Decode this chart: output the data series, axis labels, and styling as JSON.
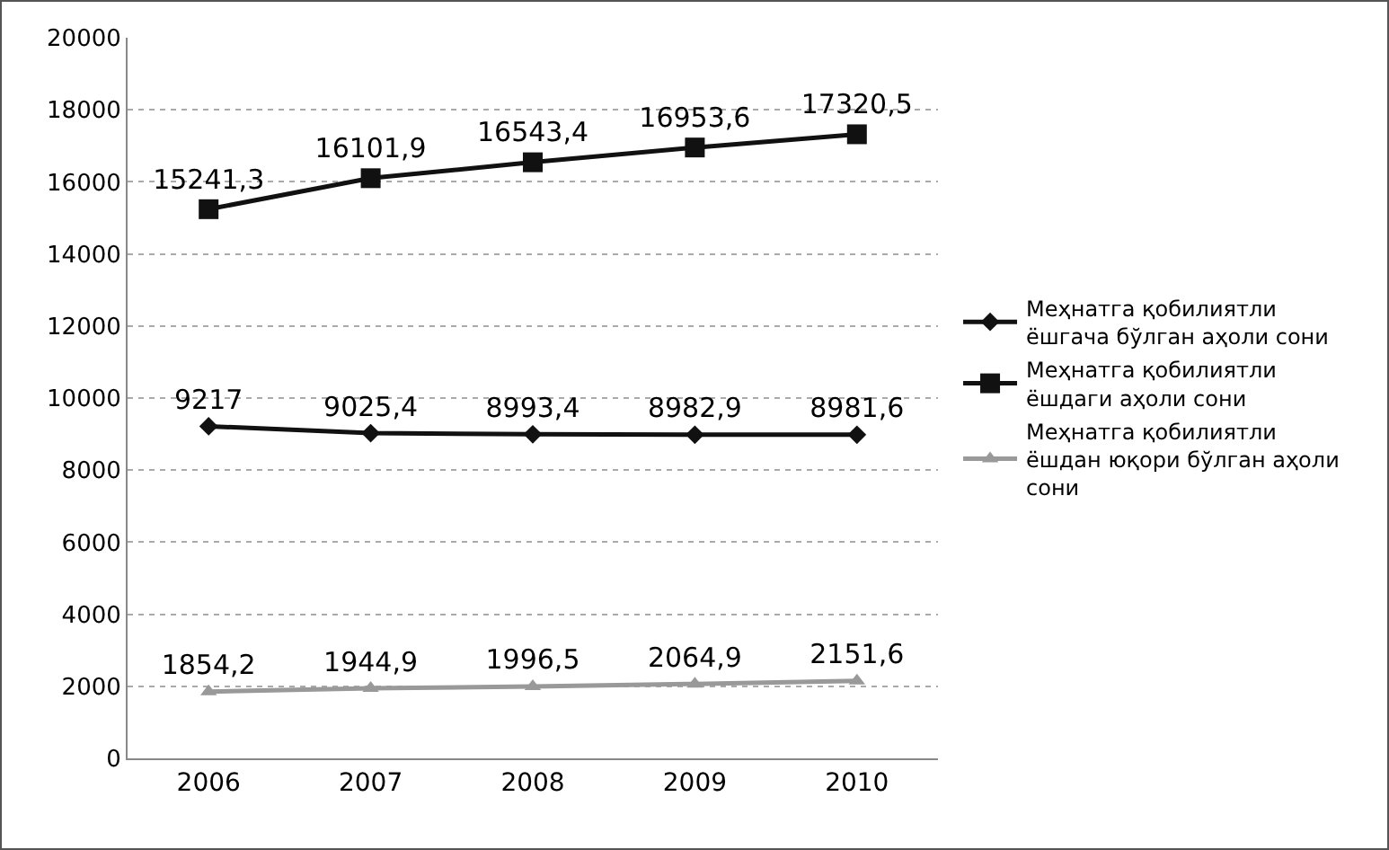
{
  "chart_data": {
    "type": "line",
    "categories": [
      "2006",
      "2007",
      "2008",
      "2009",
      "2010"
    ],
    "series": [
      {
        "name": "Меҳнатга қобилиятли ёшгача бўлган аҳоли сони",
        "color": "#111111",
        "marker": "diamond",
        "values": [
          9217,
          9025.4,
          8993.4,
          8982.9,
          8981.6
        ],
        "value_labels": [
          "9217",
          "9025,4",
          "8993,4",
          "8982,9",
          "8981,6"
        ]
      },
      {
        "name": "Меҳнатга қобилиятли ёшдаги аҳоли сони",
        "color": "#111111",
        "marker": "square",
        "values": [
          15241.3,
          16101.9,
          16543.4,
          16953.6,
          17320.5
        ],
        "value_labels": [
          "15241,3",
          "16101,9",
          "16543,4",
          "16953,6",
          "17320,5"
        ]
      },
      {
        "name": "Меҳнатга қобилиятли ёшдан юқори бўлган аҳоли сони",
        "color": "#999999",
        "marker": "triangle",
        "values": [
          1854.2,
          1944.9,
          1996.5,
          2064.9,
          2151.6
        ],
        "value_labels": [
          "1854,2",
          "1944,9",
          "1996,5",
          "2064,9",
          "2151,6"
        ]
      }
    ],
    "ylim": [
      0,
      20000
    ],
    "yticks": [
      0,
      2000,
      4000,
      6000,
      8000,
      10000,
      12000,
      14000,
      16000,
      18000,
      20000
    ],
    "grid": "y",
    "legend": "right"
  }
}
